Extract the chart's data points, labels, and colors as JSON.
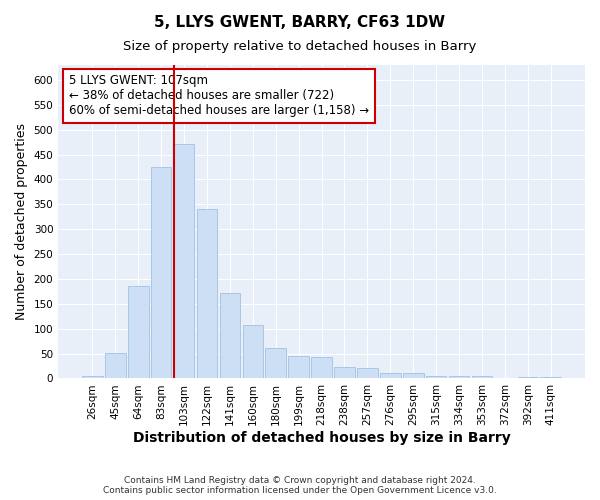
{
  "title": "5, LLYS GWENT, BARRY, CF63 1DW",
  "subtitle": "Size of property relative to detached houses in Barry",
  "xlabel": "Distribution of detached houses by size in Barry",
  "ylabel": "Number of detached properties",
  "categories": [
    "26sqm",
    "45sqm",
    "64sqm",
    "83sqm",
    "103sqm",
    "122sqm",
    "141sqm",
    "160sqm",
    "180sqm",
    "199sqm",
    "218sqm",
    "238sqm",
    "257sqm",
    "276sqm",
    "295sqm",
    "315sqm",
    "334sqm",
    "353sqm",
    "372sqm",
    "392sqm",
    "411sqm"
  ],
  "values": [
    4,
    51,
    186,
    425,
    472,
    340,
    171,
    108,
    61,
    46,
    43,
    23,
    22,
    10,
    10,
    5,
    5,
    4,
    1,
    3,
    2
  ],
  "bar_color": "#ccdff5",
  "bar_edge_color": "#a8c8e8",
  "vline_color": "#cc0000",
  "vline_x_index": 4,
  "annotation_text": "5 LLYS GWENT: 107sqm\n← 38% of detached houses are smaller (722)\n60% of semi-detached houses are larger (1,158) →",
  "annotation_box_color": "#ffffff",
  "annotation_box_edge": "#cc0000",
  "ylim": [
    0,
    630
  ],
  "yticks": [
    0,
    50,
    100,
    150,
    200,
    250,
    300,
    350,
    400,
    450,
    500,
    550,
    600
  ],
  "footer": "Contains HM Land Registry data © Crown copyright and database right 2024.\nContains public sector information licensed under the Open Government Licence v3.0.",
  "fig_background": "#ffffff",
  "plot_background": "#e8eff8",
  "grid_color": "#ffffff",
  "title_fontsize": 11,
  "subtitle_fontsize": 9.5,
  "tick_fontsize": 7.5,
  "ylabel_fontsize": 9,
  "xlabel_fontsize": 10,
  "annotation_fontsize": 8.5,
  "footer_fontsize": 6.5
}
